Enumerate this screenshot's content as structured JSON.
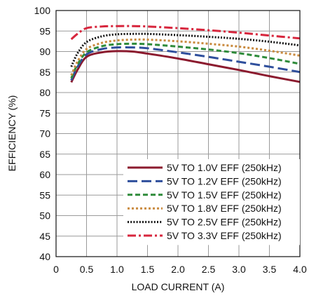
{
  "chart_data": {
    "type": "line",
    "title": "",
    "xlabel": "LOAD CURRENT (A)",
    "ylabel": "EFFICIENCY (%)",
    "xlim": [
      0,
      4.0
    ],
    "ylim": [
      40,
      100
    ],
    "x_ticks": [
      "0",
      "0.5",
      "1.0",
      "1.5",
      "2.0",
      "2.5",
      "3.0",
      "3.5",
      "4.0"
    ],
    "y_ticks": [
      "40",
      "45",
      "50",
      "55",
      "60",
      "65",
      "70",
      "75",
      "80",
      "85",
      "90",
      "95",
      "100"
    ],
    "grid": true,
    "legend_position": "bottom-right",
    "series": [
      {
        "name": "5V TO 1.0V EFF (250kHz)",
        "color": "#8b1a2e",
        "dash": "solid",
        "x": [
          0.25,
          0.35,
          0.5,
          0.75,
          1.0,
          1.25,
          1.5,
          2.0,
          2.5,
          3.0,
          3.5,
          4.0
        ],
        "y": [
          82.5,
          85.5,
          88.7,
          89.8,
          90.1,
          90.0,
          89.5,
          88.3,
          86.9,
          85.5,
          84.0,
          82.6
        ]
      },
      {
        "name": "5V TO 1.2V EFF (250kHz)",
        "color": "#2f4f9c",
        "dash": "longdash",
        "x": [
          0.25,
          0.35,
          0.5,
          0.75,
          1.0,
          1.25,
          1.5,
          2.0,
          2.5,
          3.0,
          3.5,
          4.0
        ],
        "y": [
          83.0,
          86.2,
          89.3,
          90.6,
          91.0,
          91.0,
          90.8,
          89.8,
          88.7,
          87.5,
          86.3,
          85.0
        ]
      },
      {
        "name": "5V TO 1.5V EFF (250kHz)",
        "color": "#2e8b3a",
        "dash": "dash",
        "x": [
          0.25,
          0.35,
          0.5,
          0.75,
          1.0,
          1.25,
          1.5,
          2.0,
          2.5,
          3.0,
          3.5,
          4.0
        ],
        "y": [
          83.5,
          86.8,
          89.8,
          91.3,
          91.8,
          91.9,
          91.8,
          91.2,
          90.5,
          89.6,
          88.4,
          87.0
        ]
      },
      {
        "name": "5V TO 1.8V EFF (250kHz)",
        "color": "#c98a3e",
        "dash": "dot",
        "x": [
          0.25,
          0.35,
          0.5,
          0.75,
          1.0,
          1.25,
          1.5,
          2.0,
          2.5,
          3.0,
          3.5,
          4.0
        ],
        "y": [
          84.2,
          87.5,
          90.6,
          92.1,
          92.7,
          92.9,
          92.9,
          92.5,
          91.9,
          91.2,
          90.2,
          89.0
        ]
      },
      {
        "name": "5V TO 2.5V EFF (250kHz)",
        "color": "#111111",
        "dash": "densedot",
        "x": [
          0.25,
          0.35,
          0.5,
          0.75,
          1.0,
          1.25,
          1.5,
          2.0,
          2.5,
          3.0,
          3.5,
          4.0
        ],
        "y": [
          86.3,
          89.5,
          92.3,
          93.7,
          94.2,
          94.3,
          94.3,
          94.0,
          93.6,
          93.1,
          92.4,
          91.5
        ]
      },
      {
        "name": "5V TO 3.3V EFF (250kHz)",
        "color": "#d7263d",
        "dash": "dashdot",
        "x": [
          0.25,
          0.35,
          0.5,
          0.75,
          1.0,
          1.25,
          1.5,
          2.0,
          2.5,
          3.0,
          3.5,
          4.0
        ],
        "y": [
          93.0,
          94.3,
          95.7,
          96.1,
          96.2,
          96.2,
          96.1,
          95.7,
          95.2,
          94.6,
          93.9,
          93.2
        ]
      }
    ]
  }
}
